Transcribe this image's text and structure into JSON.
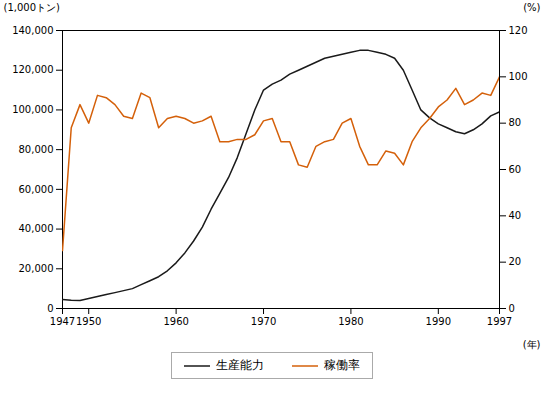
{
  "chart_data": {
    "type": "line",
    "xlabel": "(年)",
    "ylabel": "(1,000トン)",
    "y2label": "(%)",
    "x": [
      1947,
      1948,
      1949,
      1950,
      1951,
      1952,
      1953,
      1954,
      1955,
      1956,
      1957,
      1958,
      1959,
      1960,
      1961,
      1962,
      1963,
      1964,
      1965,
      1966,
      1967,
      1968,
      1969,
      1970,
      1971,
      1972,
      1973,
      1974,
      1975,
      1976,
      1977,
      1978,
      1979,
      1980,
      1981,
      1982,
      1983,
      1984,
      1985,
      1986,
      1987,
      1988,
      1989,
      1990,
      1991,
      1992,
      1993,
      1994,
      1995,
      1996,
      1997
    ],
    "series": [
      {
        "name": "生産能力",
        "color": "#1a1a1a",
        "axis": "y",
        "values": [
          4500,
          4200,
          4000,
          5000,
          6000,
          7000,
          8000,
          9000,
          10000,
          12000,
          14000,
          16000,
          19000,
          23000,
          28000,
          34000,
          41000,
          50000,
          58000,
          66000,
          76000,
          88000,
          100000,
          110000,
          113000,
          115000,
          118000,
          120000,
          122000,
          124000,
          126000,
          127000,
          128000,
          129000,
          130000,
          130000,
          129000,
          128000,
          126000,
          120000,
          110000,
          100000,
          96000,
          93000,
          91000,
          89000,
          88000,
          90000,
          93000,
          97000,
          99000
        ]
      },
      {
        "name": "稼働率",
        "color": "#d4600a",
        "axis": "y2",
        "values": [
          25,
          78,
          88,
          80,
          92,
          91,
          88,
          83,
          82,
          93,
          91,
          78,
          82,
          83,
          82,
          80,
          81,
          83,
          72,
          72,
          73,
          73,
          75,
          81,
          82,
          72,
          72,
          62,
          61,
          70,
          72,
          73,
          80,
          82,
          70,
          62,
          62,
          68,
          67,
          62,
          72,
          78,
          82,
          87,
          90,
          95,
          88,
          90,
          93,
          92,
          100
        ]
      }
    ],
    "xlim": [
      1947,
      1997
    ],
    "xticks": [
      1947,
      1950,
      1960,
      1970,
      1980,
      1990,
      1997
    ],
    "ylim": [
      0,
      140000
    ],
    "yticks": [
      0,
      {
        "value": 20000,
        "label": "20,000"
      },
      {
        "value": 40000,
        "label": "40,000"
      },
      {
        "value": 60000,
        "label": "60,000"
      },
      {
        "value": 80000,
        "label": "80,000"
      },
      {
        "value": 100000,
        "label": "100,000"
      },
      {
        "value": 120000,
        "label": "120,000"
      },
      {
        "value": 140000,
        "label": "140,000"
      }
    ],
    "y2lim": [
      0,
      120
    ],
    "y2ticks": [
      0,
      20,
      40,
      60,
      80,
      100,
      120
    ],
    "grid": false,
    "legend": "bottom"
  }
}
